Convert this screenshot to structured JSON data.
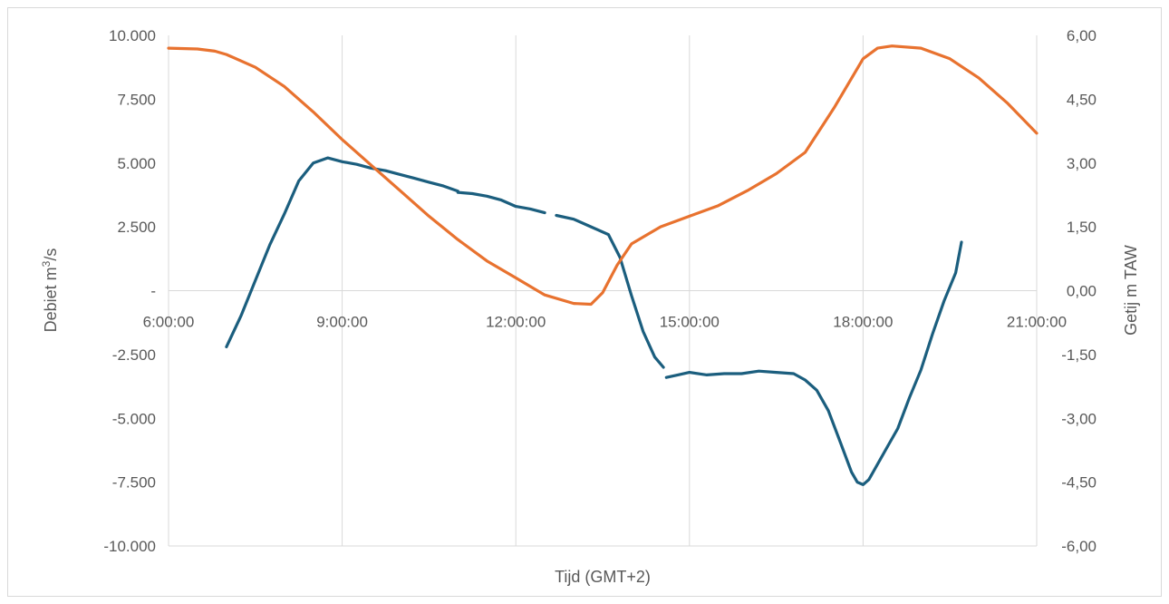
{
  "chart_data": {
    "type": "line",
    "xlabel": "Tijd (GMT+2)",
    "ylabel_left": "Debiet m³/s",
    "ylabel_right": "Getij m TAW",
    "x_ticks": [
      "6:00:00",
      "9:00:00",
      "12:00:00",
      "15:00:00",
      "18:00:00",
      "21:00:00"
    ],
    "x_range_hours": [
      6,
      21
    ],
    "y_left_range": [
      -10000,
      10000
    ],
    "y_left_ticks": [
      {
        "value": 10000,
        "label": "10.000"
      },
      {
        "value": 7500,
        "label": "7.500"
      },
      {
        "value": 5000,
        "label": "5.000"
      },
      {
        "value": 2500,
        "label": "2.500"
      },
      {
        "value": 0,
        "label": "-"
      },
      {
        "value": -2500,
        "label": "-2.500"
      },
      {
        "value": -5000,
        "label": "-5.000"
      },
      {
        "value": -7500,
        "label": "-7.500"
      },
      {
        "value": -10000,
        "label": "-10.000"
      }
    ],
    "y_right_range": [
      -6,
      6
    ],
    "y_right_ticks": [
      {
        "value": 6,
        "label": "6,00"
      },
      {
        "value": 4.5,
        "label": "4,50"
      },
      {
        "value": 3,
        "label": "3,00"
      },
      {
        "value": 1.5,
        "label": "1,50"
      },
      {
        "value": 0,
        "label": "0,00"
      },
      {
        "value": -1.5,
        "label": "-1,50"
      },
      {
        "value": -3,
        "label": "-3,00"
      },
      {
        "value": -4.5,
        "label": "-4,50"
      },
      {
        "value": -6,
        "label": "-6,00"
      }
    ],
    "grid": "vertical",
    "series": [
      {
        "axis": "left",
        "color": "#1b5e7e",
        "segments": [
          [
            [
              7.0,
              -2200
            ],
            [
              7.25,
              -1000
            ],
            [
              7.5,
              400
            ],
            [
              7.75,
              1800
            ],
            [
              8.0,
              3000
            ],
            [
              8.25,
              4300
            ],
            [
              8.5,
              5000
            ],
            [
              8.75,
              5200
            ],
            [
              9.0,
              5050
            ],
            [
              9.25,
              4950
            ],
            [
              9.5,
              4800
            ],
            [
              9.75,
              4700
            ],
            [
              10.0,
              4550
            ],
            [
              10.25,
              4400
            ],
            [
              10.5,
              4250
            ],
            [
              10.75,
              4100
            ],
            [
              11.0,
              3900
            ]
          ],
          [
            [
              11.0,
              3850
            ],
            [
              11.25,
              3800
            ],
            [
              11.5,
              3700
            ],
            [
              11.75,
              3550
            ],
            [
              12.0,
              3300
            ],
            [
              12.25,
              3200
            ],
            [
              12.5,
              3050
            ]
          ],
          [
            [
              12.7,
              2950
            ],
            [
              13.0,
              2800
            ],
            [
              13.3,
              2500
            ],
            [
              13.6,
              2200
            ],
            [
              13.8,
              1300
            ],
            [
              14.0,
              -200
            ],
            [
              14.2,
              -1600
            ],
            [
              14.4,
              -2600
            ],
            [
              14.55,
              -3000
            ]
          ],
          [
            [
              14.6,
              -3400
            ],
            [
              14.8,
              -3300
            ],
            [
              15.0,
              -3200
            ],
            [
              15.3,
              -3300
            ],
            [
              15.6,
              -3250
            ],
            [
              15.9,
              -3250
            ],
            [
              16.2,
              -3150
            ],
            [
              16.5,
              -3200
            ],
            [
              16.8,
              -3250
            ],
            [
              17.0,
              -3500
            ],
            [
              17.2,
              -3900
            ],
            [
              17.4,
              -4700
            ],
            [
              17.6,
              -5900
            ],
            [
              17.8,
              -7100
            ],
            [
              17.9,
              -7500
            ],
            [
              18.0,
              -7600
            ],
            [
              18.1,
              -7400
            ],
            [
              18.2,
              -7000
            ],
            [
              18.4,
              -6200
            ],
            [
              18.6,
              -5400
            ],
            [
              18.8,
              -4200
            ],
            [
              19.0,
              -3100
            ],
            [
              19.2,
              -1700
            ],
            [
              19.4,
              -400
            ],
            [
              19.6,
              700
            ],
            [
              19.7,
              1900
            ]
          ]
        ]
      },
      {
        "axis": "right",
        "color": "#e8722f",
        "segments": [
          [
            [
              6.0,
              5.7
            ],
            [
              6.5,
              5.68
            ],
            [
              6.8,
              5.63
            ],
            [
              7.0,
              5.55
            ],
            [
              7.5,
              5.25
            ],
            [
              8.0,
              4.8
            ],
            [
              8.5,
              4.2
            ],
            [
              9.0,
              3.55
            ],
            [
              9.5,
              2.95
            ],
            [
              10.0,
              2.35
            ],
            [
              10.5,
              1.75
            ],
            [
              11.0,
              1.2
            ],
            [
              11.5,
              0.7
            ],
            [
              12.0,
              0.3
            ],
            [
              12.5,
              -0.1
            ],
            [
              13.0,
              -0.3
            ],
            [
              13.3,
              -0.32
            ],
            [
              13.5,
              -0.05
            ],
            [
              13.75,
              0.6
            ],
            [
              14.0,
              1.1
            ],
            [
              14.5,
              1.5
            ],
            [
              15.0,
              1.75
            ],
            [
              15.5,
              2.0
            ],
            [
              16.0,
              2.35
            ],
            [
              16.5,
              2.75
            ],
            [
              17.0,
              3.25
            ],
            [
              17.5,
              4.3
            ],
            [
              18.0,
              5.45
            ],
            [
              18.25,
              5.7
            ],
            [
              18.5,
              5.75
            ],
            [
              19.0,
              5.7
            ],
            [
              19.5,
              5.45
            ],
            [
              20.0,
              5.0
            ],
            [
              20.5,
              4.4
            ],
            [
              21.0,
              3.7
            ]
          ]
        ]
      }
    ]
  }
}
